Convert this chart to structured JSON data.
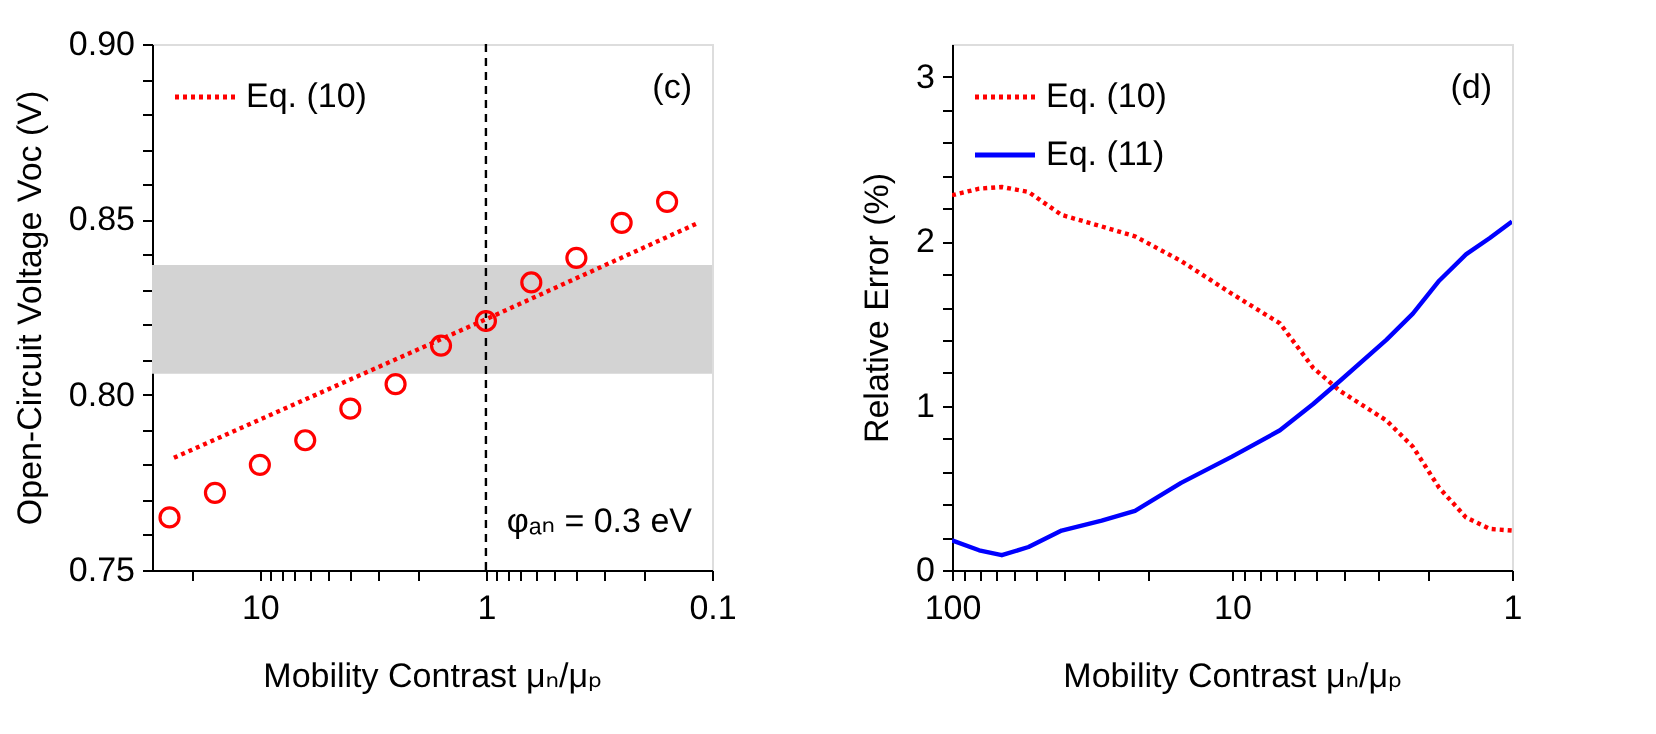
{
  "chart_data": [
    {
      "type": "line",
      "ylabel": "Open-Circuit Voltage Voc (V)",
      "xlabel": "Mobility Contrast μₙ/μₚ",
      "log": "x",
      "xlim": [
        30,
        0.1
      ],
      "ylim": [
        0.75,
        0.9
      ],
      "xticks": [
        {
          "value": 20,
          "label": null
        },
        10,
        {
          "value": 9,
          "label": null
        },
        {
          "value": 8,
          "label": null
        },
        {
          "value": 7,
          "label": null
        },
        {
          "value": 6,
          "label": null
        },
        {
          "value": 5,
          "label": null
        },
        {
          "value": 4,
          "label": null
        },
        {
          "value": 3,
          "label": null
        },
        {
          "value": 2,
          "label": null
        },
        1,
        {
          "value": 0.9,
          "label": null
        },
        {
          "value": 0.8,
          "label": null
        },
        {
          "value": 0.7,
          "label": null
        },
        {
          "value": 0.6,
          "label": null
        },
        {
          "value": 0.5,
          "label": null
        },
        {
          "value": 0.4,
          "label": null
        },
        {
          "value": 0.3,
          "label": null
        },
        {
          "value": 0.2,
          "label": null
        },
        0.1
      ],
      "yticks": [
        {
          "value": 0.75,
          "label": "0.75"
        },
        {
          "value": 0.76,
          "label": null
        },
        {
          "value": 0.77,
          "label": null
        },
        {
          "value": 0.78,
          "label": null
        },
        {
          "value": 0.79,
          "label": null
        },
        {
          "value": 0.8,
          "label": "0.80"
        },
        {
          "value": 0.81,
          "label": null
        },
        {
          "value": 0.82,
          "label": null
        },
        {
          "value": 0.83,
          "label": null
        },
        {
          "value": 0.84,
          "label": null
        },
        {
          "value": 0.85,
          "label": "0.85"
        },
        {
          "value": 0.86,
          "label": null
        },
        {
          "value": 0.87,
          "label": null
        },
        {
          "value": 0.88,
          "label": null
        },
        {
          "value": 0.89,
          "label": null
        },
        {
          "value": 0.9,
          "label": "0.90"
        }
      ],
      "grid": false,
      "legend": "top left",
      "series": [
        {
          "type": "scatter",
          "marker": "circle",
          "color": "#ff0000",
          "x": [
            25.1,
            15.8,
            10,
            6.3,
            3.98,
            2.51,
            1.58,
            1,
            0.63,
            0.398,
            0.251,
            0.158
          ],
          "values": [
            0.765,
            0.772,
            0.78,
            0.787,
            0.796,
            0.803,
            0.814,
            0.821,
            0.832,
            0.839,
            0.849,
            0.855
          ]
        },
        {
          "type": "line",
          "name": "Eq. (10)",
          "color": "#ff0000",
          "line_style": "dotted",
          "x": [
            24,
            1,
            0.115
          ],
          "values": [
            0.782,
            0.8215,
            0.849
          ]
        }
      ],
      "bands": [
        {
          "axis": "y",
          "from": 0.806,
          "to": 0.837,
          "color": "#d3d3d3"
        }
      ],
      "ref_lines": [
        {
          "axis": "x",
          "value": 1,
          "color": "#000000",
          "line_style": "dashed"
        }
      ],
      "annotations": [
        "(c)",
        "φₐₙ = 0.3 eV"
      ]
    },
    {
      "type": "line",
      "ylabel": "Relative Error (%)",
      "xlabel": "Mobility Contrast μₙ/μₚ",
      "log": "x",
      "xlim": [
        100,
        1
      ],
      "ylim": [
        0,
        3.2
      ],
      "xticks": [
        100,
        {
          "value": 90,
          "label": null
        },
        {
          "value": 80,
          "label": null
        },
        {
          "value": 70,
          "label": null
        },
        {
          "value": 60,
          "label": null
        },
        {
          "value": 50,
          "label": null
        },
        {
          "value": 40,
          "label": null
        },
        {
          "value": 30,
          "label": null
        },
        {
          "value": 20,
          "label": null
        },
        10,
        {
          "value": 9,
          "label": null
        },
        {
          "value": 8,
          "label": null
        },
        {
          "value": 7,
          "label": null
        },
        {
          "value": 6,
          "label": null
        },
        {
          "value": 5,
          "label": null
        },
        {
          "value": 4,
          "label": null
        },
        {
          "value": 3,
          "label": null
        },
        {
          "value": 2,
          "label": null
        },
        1
      ],
      "yticks": [
        0,
        {
          "value": 0.2,
          "label": null
        },
        {
          "value": 0.4,
          "label": null
        },
        {
          "value": 0.6,
          "label": null
        },
        {
          "value": 0.8,
          "label": null
        },
        1,
        {
          "value": 1.2,
          "label": null
        },
        {
          "value": 1.4,
          "label": null
        },
        {
          "value": 1.6,
          "label": null
        },
        {
          "value": 1.8,
          "label": null
        },
        2,
        {
          "value": 2.2,
          "label": null
        },
        {
          "value": 2.4,
          "label": null
        },
        {
          "value": 2.6,
          "label": null
        },
        {
          "value": 2.8,
          "label": null
        },
        3
      ],
      "grid": false,
      "legend": "top left",
      "series": [
        {
          "type": "line",
          "name": "Eq. (10)",
          "color": "#ff0000",
          "line_style": "dotted",
          "x": [
            100,
            80,
            66.4,
            53.3,
            40.6,
            29.2,
            22.2,
            15.2,
            10,
            6.74,
            5.13,
            4.12,
            2.81,
            2.26,
            1.82,
            1.46,
            1.2,
            1
          ],
          "values": [
            2.28,
            2.32,
            2.33,
            2.3,
            2.16,
            2.09,
            2.03,
            1.88,
            1.68,
            1.5,
            1.23,
            1.09,
            0.91,
            0.75,
            0.5,
            0.32,
            0.25,
            0.24
          ]
        },
        {
          "type": "line",
          "name": "Eq. (11)",
          "color": "#0000ff",
          "line_style": "solid",
          "x": [
            100,
            80,
            66.4,
            53.3,
            40.6,
            29.2,
            22.2,
            15.2,
            10,
            6.74,
            5.13,
            4.12,
            2.81,
            2.26,
            1.82,
            1.46,
            1.2,
            1
          ],
          "values": [
            0.18,
            0.12,
            0.09,
            0.14,
            0.24,
            0.3,
            0.36,
            0.53,
            0.69,
            0.85,
            1.01,
            1.15,
            1.4,
            1.56,
            1.76,
            1.92,
            2.02,
            2.12
          ]
        }
      ],
      "annotations": [
        "(d)"
      ]
    }
  ]
}
